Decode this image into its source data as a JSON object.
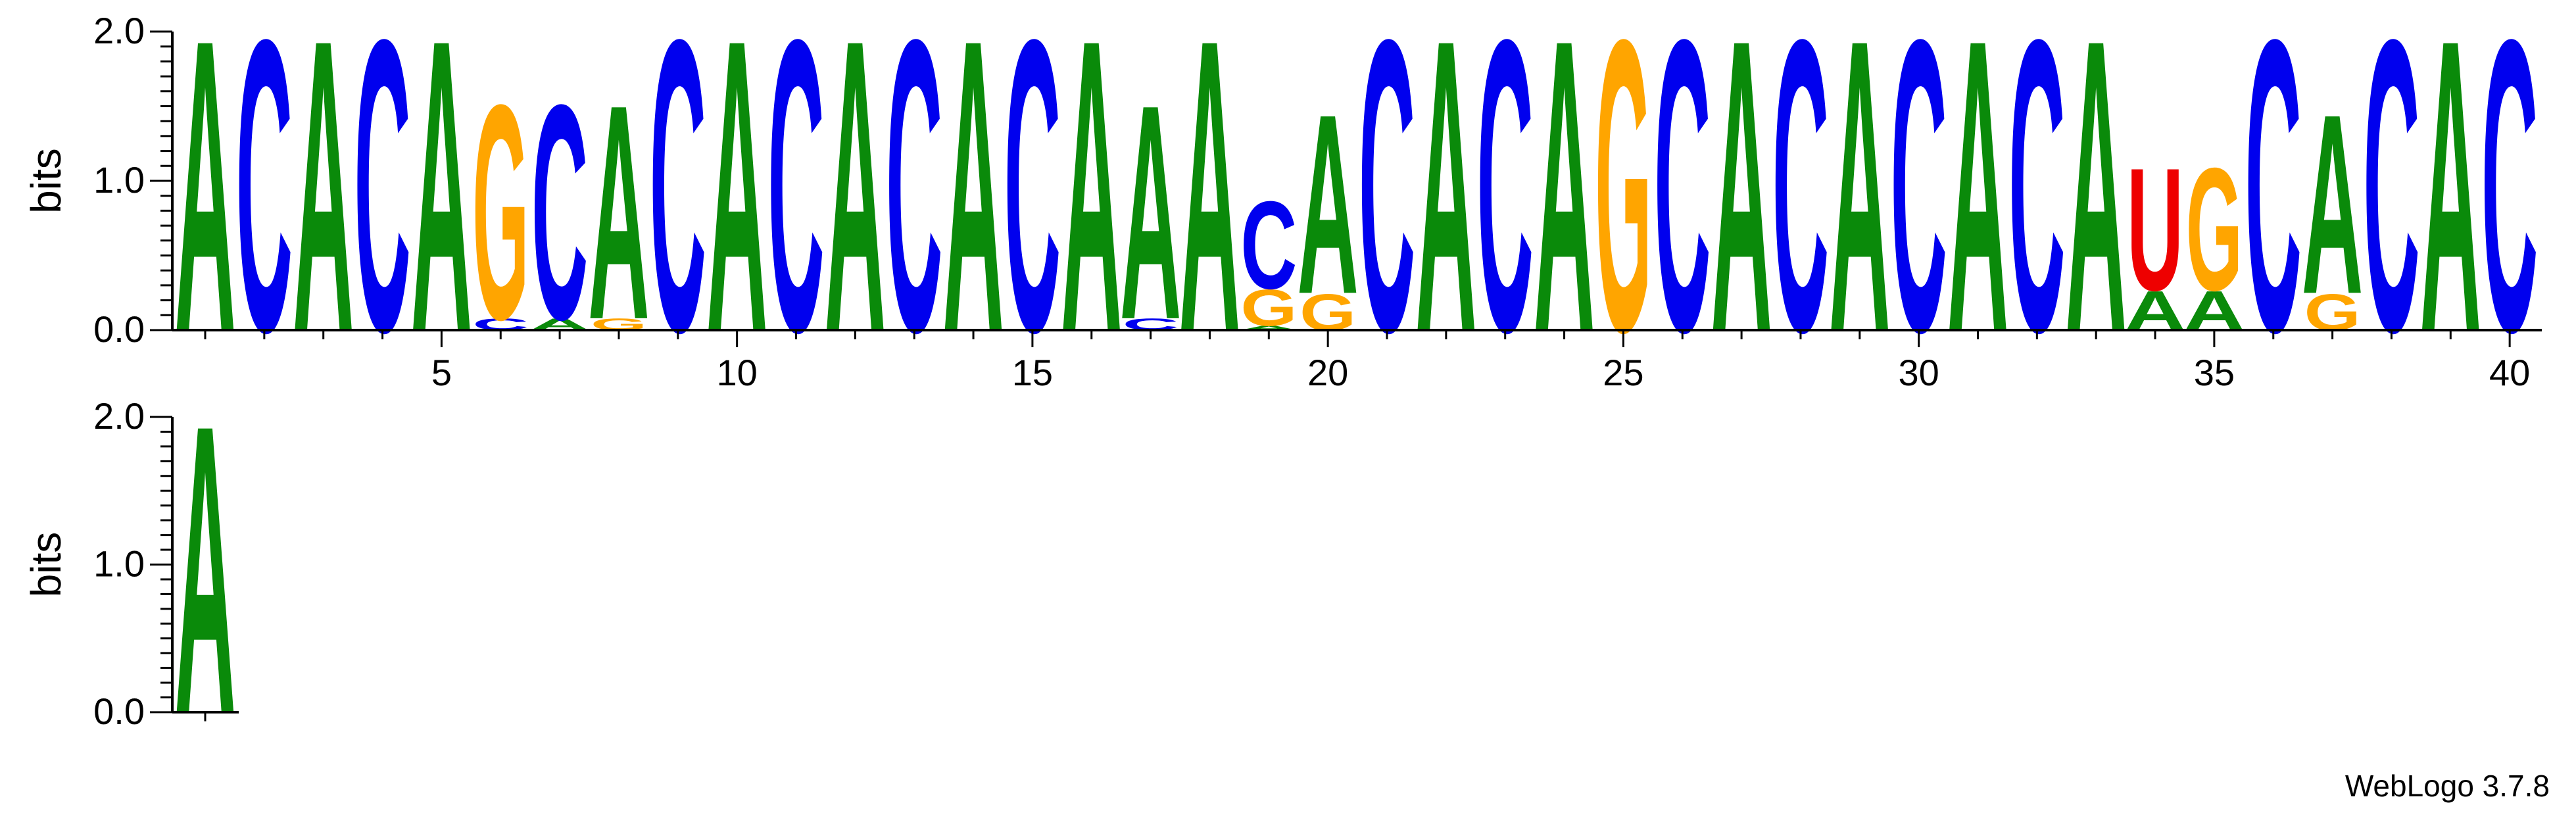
{
  "credit": "WebLogo 3.7.8",
  "colors": {
    "A": "#0a8a0a",
    "C": "#0000ee",
    "G": "#ffa500",
    "U": "#ee0000"
  },
  "chart_data": [
    {
      "type": "sequence-logo",
      "ylabel": "bits",
      "ylim": [
        0,
        2
      ],
      "yticks": [
        "0.0",
        "1.0",
        "2.0"
      ],
      "xticks": [
        5,
        10,
        15,
        20,
        25,
        30,
        35,
        40
      ],
      "positions": [
        {
          "pos": 1,
          "stack": [
            {
              "letter": "A",
              "bits": 2.0
            }
          ]
        },
        {
          "pos": 2,
          "stack": [
            {
              "letter": "C",
              "bits": 2.0
            }
          ]
        },
        {
          "pos": 3,
          "stack": [
            {
              "letter": "A",
              "bits": 2.0
            }
          ]
        },
        {
          "pos": 4,
          "stack": [
            {
              "letter": "C",
              "bits": 2.0
            }
          ]
        },
        {
          "pos": 5,
          "stack": [
            {
              "letter": "A",
              "bits": 2.0
            }
          ]
        },
        {
          "pos": 6,
          "stack": [
            {
              "letter": "C",
              "bits": 0.08
            },
            {
              "letter": "G",
              "bits": 1.47
            }
          ]
        },
        {
          "pos": 7,
          "stack": [
            {
              "letter": "A",
              "bits": 0.08
            },
            {
              "letter": "C",
              "bits": 1.47
            }
          ]
        },
        {
          "pos": 8,
          "stack": [
            {
              "letter": "G",
              "bits": 0.08
            },
            {
              "letter": "A",
              "bits": 1.47
            }
          ]
        },
        {
          "pos": 9,
          "stack": [
            {
              "letter": "C",
              "bits": 2.0
            }
          ]
        },
        {
          "pos": 10,
          "stack": [
            {
              "letter": "A",
              "bits": 2.0
            }
          ]
        },
        {
          "pos": 11,
          "stack": [
            {
              "letter": "C",
              "bits": 2.0
            }
          ]
        },
        {
          "pos": 12,
          "stack": [
            {
              "letter": "A",
              "bits": 2.0
            }
          ]
        },
        {
          "pos": 13,
          "stack": [
            {
              "letter": "C",
              "bits": 2.0
            }
          ]
        },
        {
          "pos": 14,
          "stack": [
            {
              "letter": "A",
              "bits": 2.0
            }
          ]
        },
        {
          "pos": 15,
          "stack": [
            {
              "letter": "C",
              "bits": 2.0
            }
          ]
        },
        {
          "pos": 16,
          "stack": [
            {
              "letter": "A",
              "bits": 2.0
            }
          ]
        },
        {
          "pos": 17,
          "stack": [
            {
              "letter": "C",
              "bits": 0.08
            },
            {
              "letter": "A",
              "bits": 1.47
            }
          ]
        },
        {
          "pos": 18,
          "stack": [
            {
              "letter": "A",
              "bits": 2.0
            }
          ]
        },
        {
          "pos": 19,
          "stack": [
            {
              "letter": "A",
              "bits": 0.03
            },
            {
              "letter": "G",
              "bits": 0.25
            },
            {
              "letter": "C",
              "bits": 0.6
            }
          ]
        },
        {
          "pos": 20,
          "stack": [
            {
              "letter": "G",
              "bits": 0.25
            },
            {
              "letter": "A",
              "bits": 1.23
            }
          ]
        },
        {
          "pos": 21,
          "stack": [
            {
              "letter": "C",
              "bits": 2.0
            }
          ]
        },
        {
          "pos": 22,
          "stack": [
            {
              "letter": "A",
              "bits": 2.0
            }
          ]
        },
        {
          "pos": 23,
          "stack": [
            {
              "letter": "C",
              "bits": 2.0
            }
          ]
        },
        {
          "pos": 24,
          "stack": [
            {
              "letter": "A",
              "bits": 2.0
            }
          ]
        },
        {
          "pos": 25,
          "stack": [
            {
              "letter": "G",
              "bits": 2.0
            }
          ]
        },
        {
          "pos": 26,
          "stack": [
            {
              "letter": "C",
              "bits": 2.0
            }
          ]
        },
        {
          "pos": 27,
          "stack": [
            {
              "letter": "A",
              "bits": 2.0
            }
          ]
        },
        {
          "pos": 28,
          "stack": [
            {
              "letter": "C",
              "bits": 2.0
            }
          ]
        },
        {
          "pos": 29,
          "stack": [
            {
              "letter": "A",
              "bits": 2.0
            }
          ]
        },
        {
          "pos": 30,
          "stack": [
            {
              "letter": "C",
              "bits": 2.0
            }
          ]
        },
        {
          "pos": 31,
          "stack": [
            {
              "letter": "A",
              "bits": 2.0
            }
          ]
        },
        {
          "pos": 32,
          "stack": [
            {
              "letter": "C",
              "bits": 2.0
            }
          ]
        },
        {
          "pos": 33,
          "stack": [
            {
              "letter": "A",
              "bits": 2.0
            }
          ]
        },
        {
          "pos": 34,
          "stack": [
            {
              "letter": "A",
              "bits": 0.27
            },
            {
              "letter": "U",
              "bits": 0.84
            }
          ]
        },
        {
          "pos": 35,
          "stack": [
            {
              "letter": "A",
              "bits": 0.27
            },
            {
              "letter": "G",
              "bits": 0.84
            }
          ]
        },
        {
          "pos": 36,
          "stack": [
            {
              "letter": "C",
              "bits": 2.0
            }
          ]
        },
        {
          "pos": 37,
          "stack": [
            {
              "letter": "G",
              "bits": 0.25
            },
            {
              "letter": "A",
              "bits": 1.23
            }
          ]
        },
        {
          "pos": 38,
          "stack": [
            {
              "letter": "C",
              "bits": 2.0
            }
          ]
        },
        {
          "pos": 39,
          "stack": [
            {
              "letter": "A",
              "bits": 2.0
            }
          ]
        },
        {
          "pos": 40,
          "stack": [
            {
              "letter": "C",
              "bits": 2.0
            }
          ]
        }
      ]
    },
    {
      "type": "sequence-logo",
      "ylabel": "bits",
      "ylim": [
        0,
        2
      ],
      "yticks": [
        "0.0",
        "1.0",
        "2.0"
      ],
      "xticks": [],
      "positions": [
        {
          "pos": 41,
          "stack": [
            {
              "letter": "A",
              "bits": 2.0
            }
          ]
        }
      ]
    }
  ]
}
